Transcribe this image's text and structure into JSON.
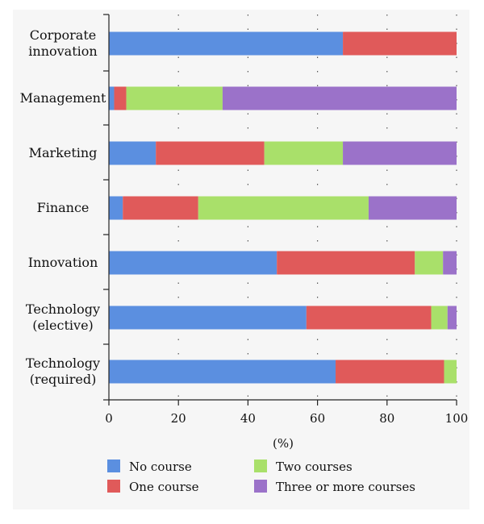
{
  "chart_data": {
    "type": "bar",
    "orientation": "horizontal",
    "stacked": true,
    "categories": [
      [
        "Corporate",
        "innovation"
      ],
      [
        "Management"
      ],
      [
        "Marketing"
      ],
      [
        "Finance"
      ],
      [
        "Innovation"
      ],
      [
        "Technology",
        "(elective)"
      ],
      [
        "Technology",
        "(required)"
      ]
    ],
    "series": [
      {
        "name": "No course",
        "color": "#5b8fe0",
        "values": [
          67.3,
          1.5,
          13.5,
          4.0,
          48.3,
          56.8,
          65.2
        ]
      },
      {
        "name": "One course",
        "color": "#e05a5a",
        "values": [
          32.7,
          3.5,
          31.2,
          21.7,
          39.7,
          35.9,
          31.2
        ]
      },
      {
        "name": "Two courses",
        "color": "#a9e06a",
        "values": [
          0,
          27.7,
          22.6,
          49.0,
          8.1,
          4.7,
          3.6
        ]
      },
      {
        "name": "Three or more courses",
        "color": "#9b72c9",
        "values": [
          0,
          67.3,
          32.7,
          25.3,
          3.9,
          2.6,
          0
        ]
      }
    ],
    "xlim": [
      0,
      100
    ],
    "xticks": [
      "0",
      "20",
      "40",
      "60",
      "80",
      "100"
    ],
    "xlabel": "(%)",
    "ylabel": "",
    "grid": "vertical dotted",
    "legend_position": "bottom"
  }
}
